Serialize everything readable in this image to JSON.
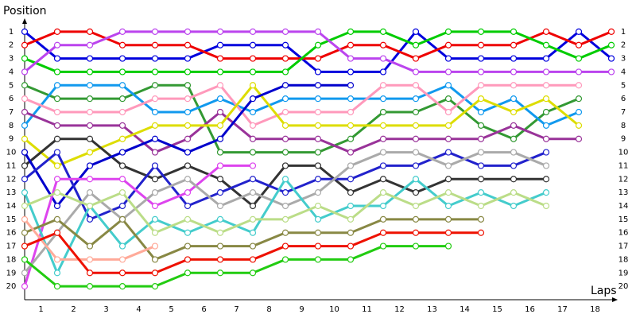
{
  "chart_data": {
    "type": "line",
    "ylabel": "Position",
    "xlabel": "Laps",
    "x": [
      0,
      1,
      2,
      3,
      4,
      5,
      6,
      7,
      8,
      9,
      10,
      11,
      12,
      13,
      14,
      15,
      16,
      17,
      18
    ],
    "xlim": [
      0,
      18.15
    ],
    "xticks": [
      {
        "value": 0.5,
        "label": "1"
      },
      {
        "value": 1.5,
        "label": "2"
      },
      {
        "value": 2.5,
        "label": "3"
      },
      {
        "value": 3.5,
        "label": "4"
      },
      {
        "value": 4.5,
        "label": "5"
      },
      {
        "value": 5.5,
        "label": "6"
      },
      {
        "value": 6.5,
        "label": "7"
      },
      {
        "value": 7.5,
        "label": "8"
      },
      {
        "value": 8.5,
        "label": "9"
      },
      {
        "value": 9.5,
        "label": "10"
      },
      {
        "value": 10.5,
        "label": "11"
      },
      {
        "value": 11.5,
        "label": "12"
      },
      {
        "value": 12.5,
        "label": "13"
      },
      {
        "value": 13.5,
        "label": "14"
      },
      {
        "value": 14.5,
        "label": "15"
      },
      {
        "value": 15.5,
        "label": "16"
      },
      {
        "value": 16.5,
        "label": "17"
      },
      {
        "value": 17.5,
        "label": "18"
      }
    ],
    "ylim": [
      21,
      0
    ],
    "yticks": [
      1,
      2,
      3,
      4,
      5,
      6,
      7,
      8,
      9,
      10,
      11,
      12,
      13,
      14,
      15,
      16,
      17,
      18,
      19,
      20
    ],
    "series": [
      {
        "color": "#0000dd",
        "values": [
          1,
          3,
          3,
          3,
          3,
          3,
          2,
          2,
          2,
          4,
          4,
          4,
          1,
          3,
          3,
          3,
          3,
          1,
          3
        ]
      },
      {
        "color": "#ee0000",
        "values": [
          2,
          1,
          1,
          2,
          2,
          2,
          3,
          3,
          3,
          3,
          2,
          2,
          3,
          2,
          2,
          2,
          1,
          2,
          1
        ]
      },
      {
        "color": "#00cc00",
        "values": [
          3,
          4,
          4,
          4,
          4,
          4,
          4,
          4,
          4,
          2,
          1,
          1,
          2,
          1,
          1,
          1,
          2,
          3,
          2
        ]
      },
      {
        "color": "#bb44ee",
        "values": [
          4,
          2,
          2,
          1,
          1,
          1,
          1,
          1,
          1,
          1,
          3,
          3,
          4,
          4,
          4,
          4,
          4,
          4,
          4
        ]
      },
      {
        "color": "#339933",
        "values": [
          5,
          6,
          6,
          6,
          5,
          5,
          10,
          10,
          10,
          10,
          9,
          7,
          7,
          6,
          8,
          9,
          7,
          6,
          null
        ]
      },
      {
        "color": "#1199ee",
        "values": [
          8,
          5,
          5,
          5,
          7,
          7,
          6,
          7,
          6,
          6,
          6,
          6,
          6,
          5,
          7,
          6,
          8,
          7,
          null
        ]
      },
      {
        "color": "#ff99bb",
        "values": [
          6,
          7,
          7,
          7,
          6,
          6,
          5,
          8,
          7,
          7,
          7,
          5,
          5,
          7,
          5,
          5,
          5,
          5,
          null
        ]
      },
      {
        "color": "#993399",
        "values": [
          7,
          8,
          8,
          8,
          10,
          9,
          7,
          9,
          9,
          9,
          10,
          9,
          9,
          9,
          9,
          8,
          9,
          9,
          null
        ]
      },
      {
        "color": "#dddd00",
        "values": [
          9,
          11,
          10,
          9,
          8,
          8,
          8,
          5,
          8,
          8,
          8,
          8,
          8,
          8,
          6,
          7,
          6,
          8,
          null
        ]
      },
      {
        "color": "#333333",
        "values": [
          11,
          9,
          9,
          11,
          12,
          11,
          12,
          14,
          11,
          11,
          13,
          12,
          13,
          12,
          12,
          12,
          12,
          null,
          null
        ]
      },
      {
        "color": "#0000cc",
        "values": [
          10,
          14,
          11,
          10,
          9,
          10,
          9,
          6,
          5,
          5,
          5,
          null,
          null,
          null,
          null,
          null,
          null,
          null,
          null
        ]
      },
      {
        "color": "#2222cc",
        "values": [
          12,
          10,
          15,
          14,
          11,
          14,
          13,
          12,
          13,
          12,
          12,
          11,
          11,
          10,
          11,
          11,
          10,
          null,
          null
        ]
      },
      {
        "color": "#dd44ee",
        "values": [
          20,
          12,
          12,
          12,
          14,
          13,
          11,
          11,
          null,
          null,
          null,
          null,
          null,
          null,
          null,
          null,
          null,
          null,
          null
        ]
      },
      {
        "color": "#aaaaaa",
        "values": [
          19,
          16,
          13,
          15,
          13,
          12,
          14,
          13,
          14,
          13,
          11,
          10,
          10,
          11,
          10,
          10,
          11,
          null,
          null
        ]
      },
      {
        "color": "#44cccc",
        "values": [
          13,
          19,
          14,
          17,
          15,
          16,
          15,
          16,
          12,
          15,
          14,
          14,
          12,
          14,
          13,
          14,
          13,
          null,
          null
        ]
      },
      {
        "color": "#bbdd88",
        "values": [
          14,
          13,
          14,
          13,
          16,
          15,
          16,
          15,
          15,
          14,
          15,
          13,
          14,
          13,
          14,
          13,
          14,
          null,
          null
        ]
      },
      {
        "color": "#888844",
        "values": [
          16,
          15,
          17,
          15,
          18,
          17,
          17,
          17,
          16,
          16,
          16,
          15,
          15,
          15,
          15,
          null,
          null,
          null,
          null
        ]
      },
      {
        "color": "#ffaa99",
        "values": [
          15,
          18,
          18,
          18,
          17,
          null,
          null,
          null,
          null,
          null,
          null,
          null,
          null,
          null,
          null,
          null,
          null,
          null,
          null
        ]
      },
      {
        "color": "#ee1100",
        "values": [
          17,
          16,
          19,
          19,
          19,
          18,
          18,
          18,
          17,
          17,
          17,
          16,
          16,
          16,
          16,
          null,
          null,
          null,
          null
        ]
      },
      {
        "color": "#22cc11",
        "values": [
          18,
          20,
          20,
          20,
          20,
          19,
          19,
          19,
          18,
          18,
          18,
          17,
          17,
          17,
          null,
          null,
          null,
          null,
          null
        ]
      }
    ]
  }
}
